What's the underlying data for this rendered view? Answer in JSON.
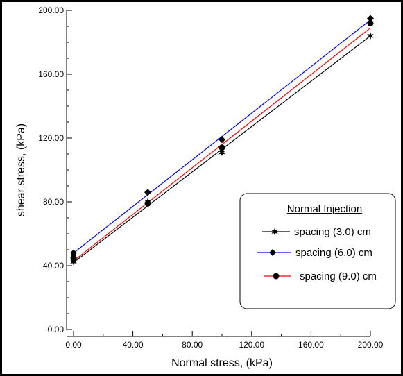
{
  "chart_data": {
    "type": "line",
    "title": "",
    "xlabel": "Normal stress, (kPa)",
    "ylabel": "shear stress, (kPa)",
    "xlim": [
      0,
      200
    ],
    "ylim": [
      0,
      200
    ],
    "x_ticks": [
      "0.00",
      "40.00",
      "80.00",
      "120.00",
      "160.00",
      "200.00"
    ],
    "y_ticks": [
      "0.00",
      "40.00",
      "80.00",
      "120.00",
      "160.00",
      "200.00"
    ],
    "grid": false,
    "legend": {
      "title": "Normal Injection",
      "position": "bottom-right"
    },
    "series": [
      {
        "name": "spacing (3.0) cm",
        "marker": "star",
        "color": "#000000",
        "points": [
          [
            0,
            42.5
          ],
          [
            50,
            80
          ],
          [
            100,
            111
          ],
          [
            200,
            184
          ]
        ],
        "fit": [
          [
            0,
            42
          ],
          [
            200,
            184
          ]
        ]
      },
      {
        "name": "spacing (6.0) cm",
        "marker": "diamond",
        "color": "#0000ff",
        "points": [
          [
            0,
            48
          ],
          [
            50,
            86
          ],
          [
            100,
            119
          ],
          [
            200,
            195
          ]
        ],
        "fit": [
          [
            0,
            48
          ],
          [
            200,
            194
          ]
        ]
      },
      {
        "name": "spacing (9.0) cm",
        "marker": "circle",
        "color": "#ff0000",
        "points": [
          [
            0,
            45
          ],
          [
            50,
            79
          ],
          [
            100,
            114
          ],
          [
            200,
            192
          ]
        ],
        "fit": [
          [
            0,
            43
          ],
          [
            200,
            189
          ]
        ]
      }
    ]
  }
}
